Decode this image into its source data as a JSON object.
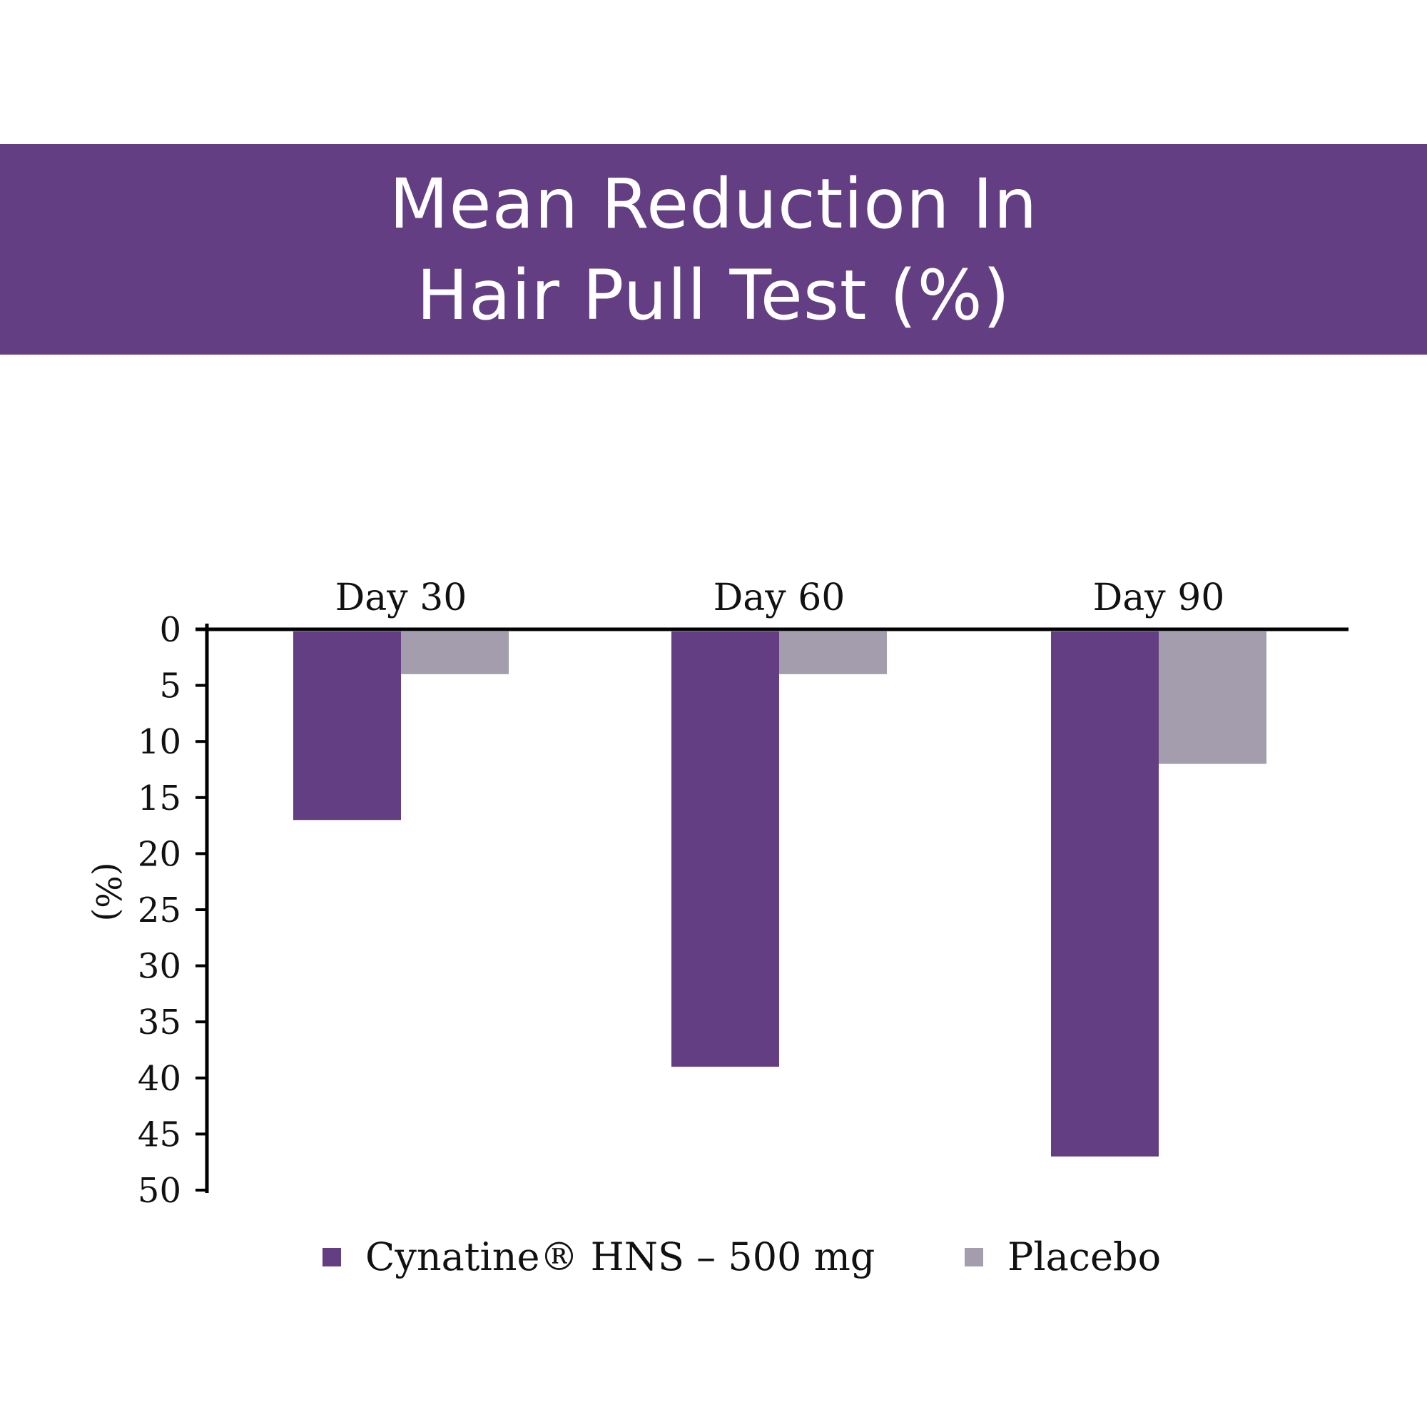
{
  "header": {
    "title_line1": "Mean Reduction In",
    "title_line2": "Hair Pull Test (%)",
    "background": "#633e82",
    "text_color": "#ffffff"
  },
  "chart_data": {
    "type": "bar",
    "title": "Mean Reduction In Hair Pull Test (%)",
    "categories": [
      "Day 30",
      "Day 60",
      "Day 90"
    ],
    "series": [
      {
        "name": "Cynatine® HNS – 500 mg",
        "values": [
          17,
          39,
          47
        ],
        "color": "#633e82"
      },
      {
        "name": "Placebo",
        "values": [
          4,
          4,
          12
        ],
        "color": "#a39dad"
      }
    ],
    "ylabel": "(%)",
    "xlabel": "",
    "ylim": [
      0,
      50
    ],
    "y_ticks": [
      0,
      5,
      10,
      15,
      20,
      25,
      30,
      35,
      40,
      45,
      50
    ],
    "y_inverted": true,
    "grid": false,
    "legend_position": "bottom"
  }
}
